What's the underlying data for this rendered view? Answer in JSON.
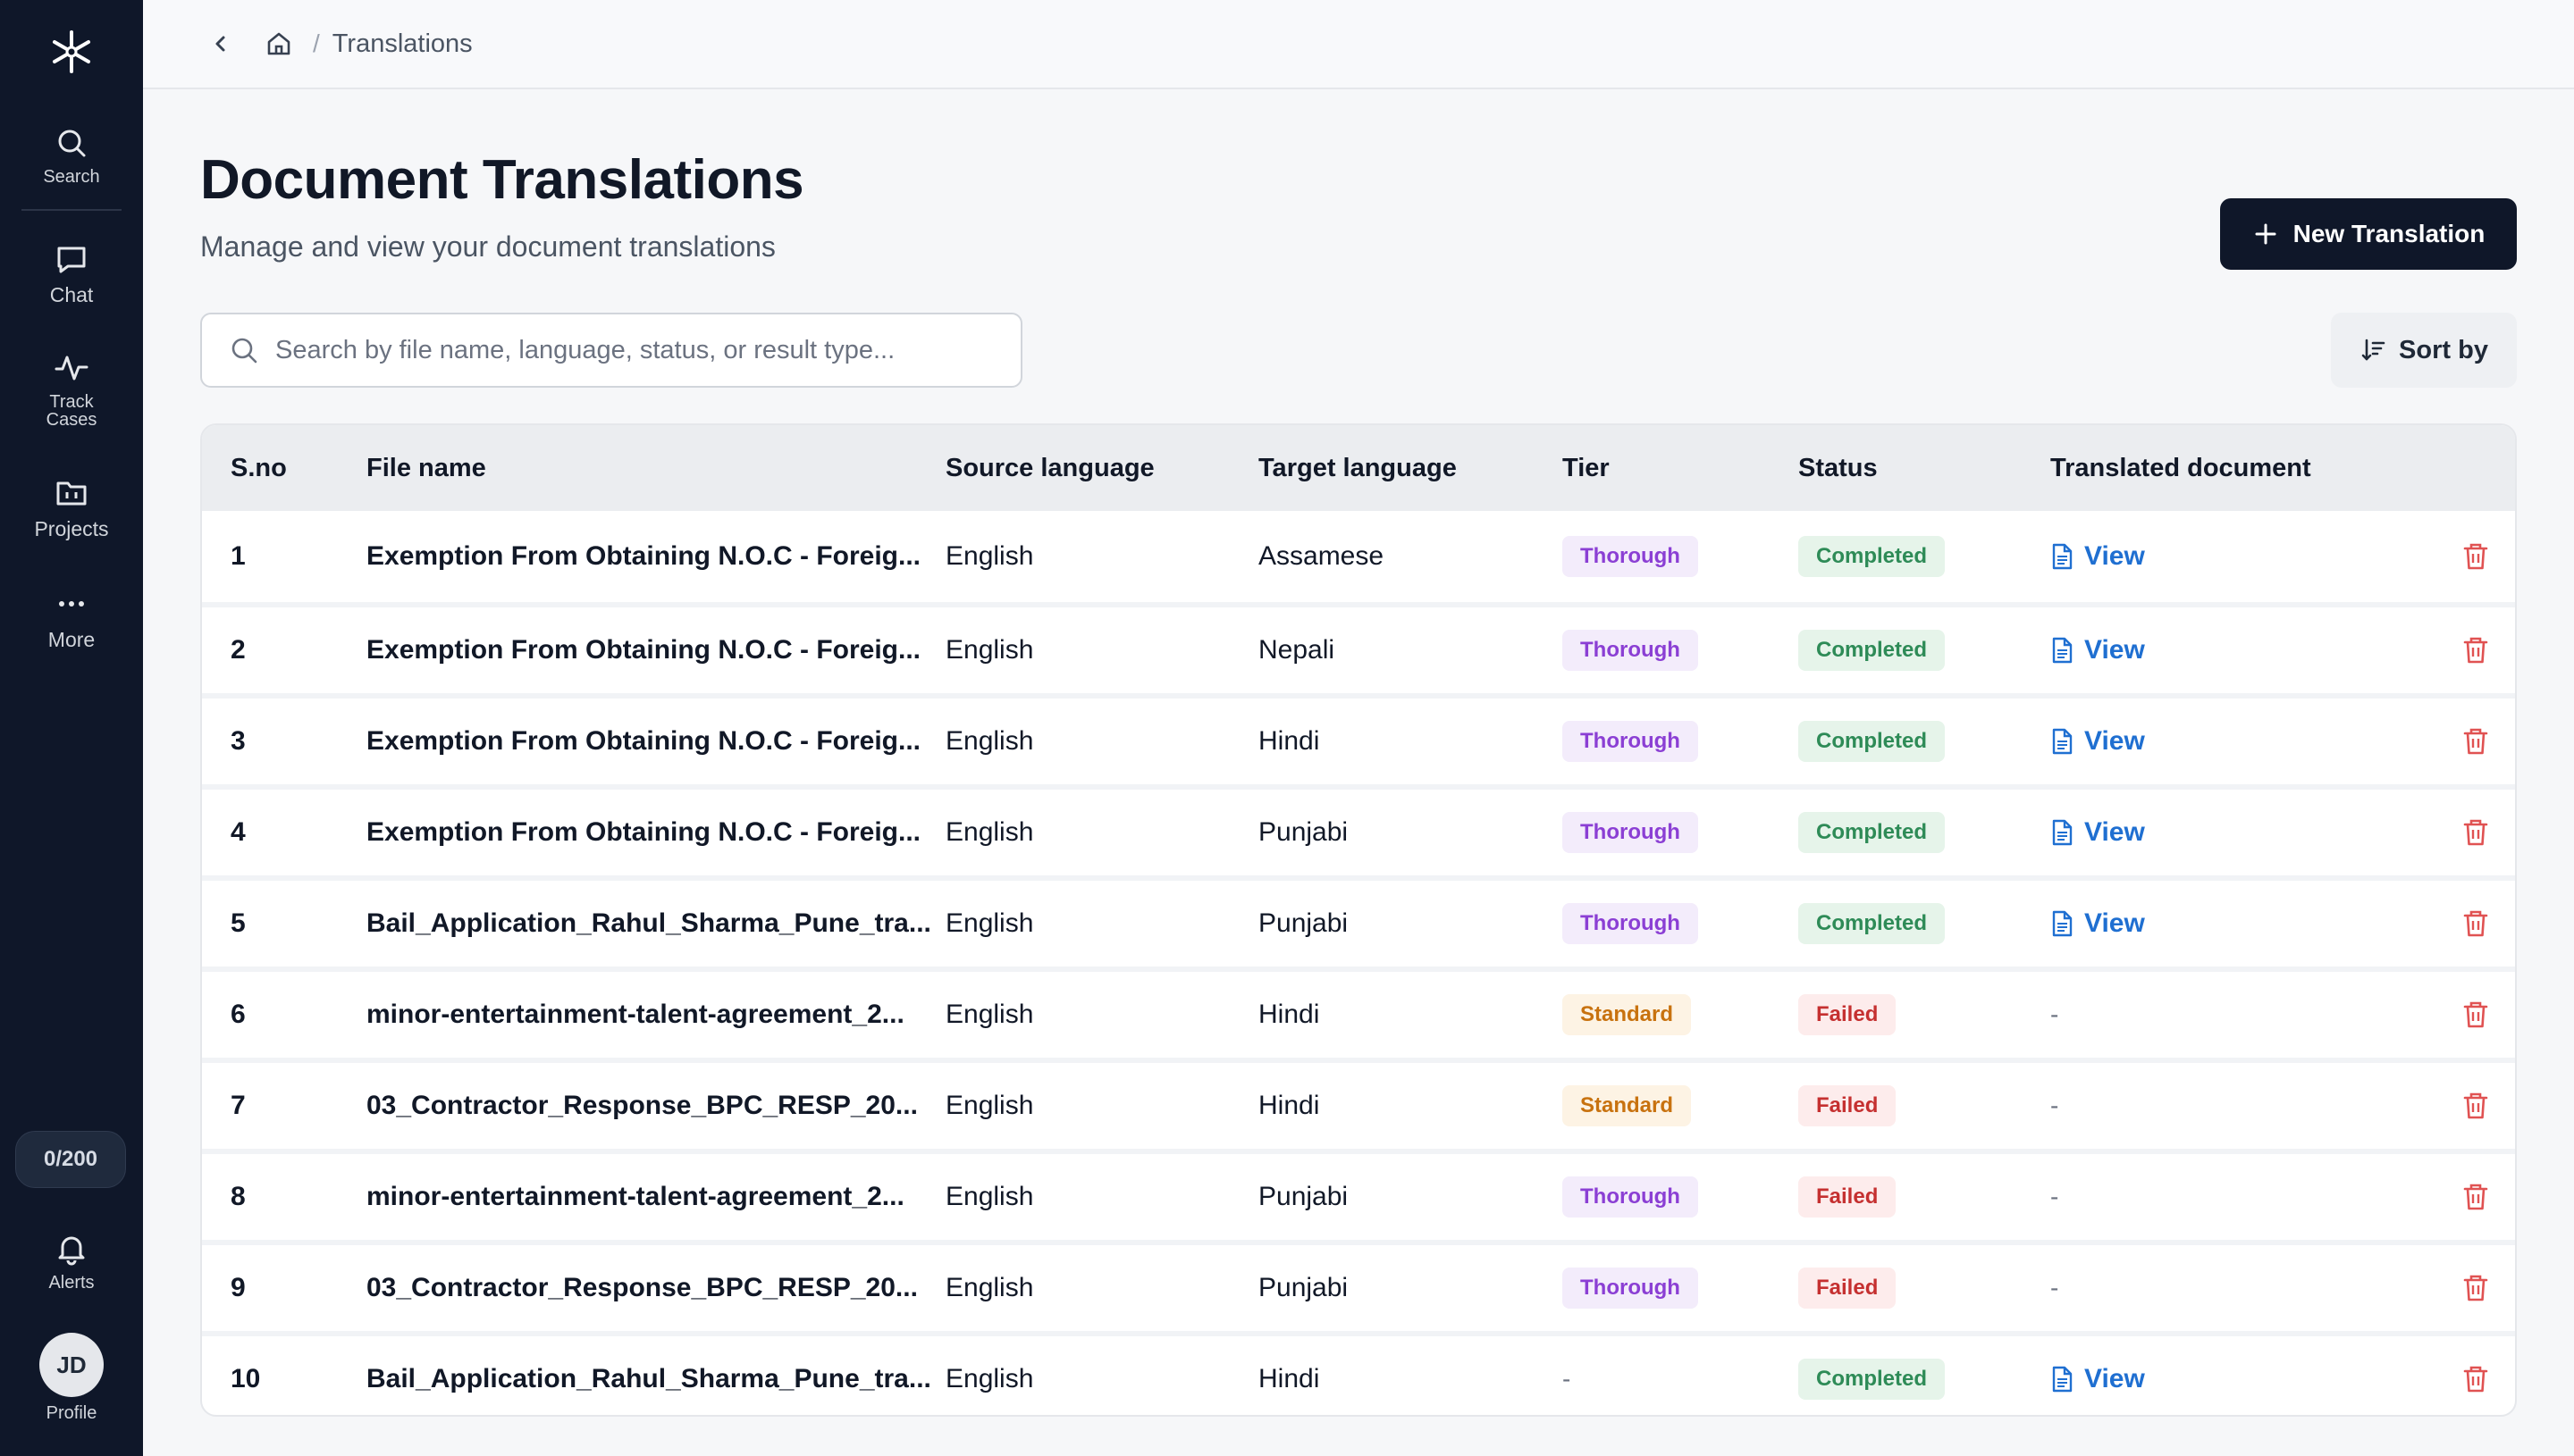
{
  "sidebar": {
    "items": [
      {
        "label": "Search",
        "icon": "search-icon"
      },
      {
        "label": "Chat",
        "icon": "chat-icon"
      },
      {
        "label": "Track\nCases",
        "icon": "activity-icon"
      },
      {
        "label": "Projects",
        "icon": "folder-icon"
      },
      {
        "label": "More",
        "icon": "more-icon"
      }
    ],
    "credits": "0/200",
    "alerts_label": "Alerts",
    "profile_initials": "JD",
    "profile_label": "Profile"
  },
  "breadcrumb": {
    "current": "Translations",
    "separator": "/"
  },
  "header": {
    "title": "Document Translations",
    "subtitle": "Manage and view your document translations",
    "new_button": "New Translation"
  },
  "search": {
    "placeholder": "Search by file name, language, status, or result type..."
  },
  "sort_label": "Sort by",
  "table": {
    "columns": [
      "S.no",
      "File name",
      "Source language",
      "Target language",
      "Tier",
      "Status",
      "Translated document"
    ],
    "rows": [
      {
        "sn": "1",
        "file": "Exemption From Obtaining N.O.C - Foreig...",
        "source": "English",
        "target": "Assamese",
        "tier": "Thorough",
        "status": "Completed",
        "doc": "View"
      },
      {
        "sn": "2",
        "file": "Exemption From Obtaining N.O.C - Foreig...",
        "source": "English",
        "target": "Nepali",
        "tier": "Thorough",
        "status": "Completed",
        "doc": "View"
      },
      {
        "sn": "3",
        "file": "Exemption From Obtaining N.O.C - Foreig...",
        "source": "English",
        "target": "Hindi",
        "tier": "Thorough",
        "status": "Completed",
        "doc": "View"
      },
      {
        "sn": "4",
        "file": "Exemption From Obtaining N.O.C - Foreig...",
        "source": "English",
        "target": "Punjabi",
        "tier": "Thorough",
        "status": "Completed",
        "doc": "View"
      },
      {
        "sn": "5",
        "file": "Bail_Application_Rahul_Sharma_Pune_tra...",
        "source": "English",
        "target": "Punjabi",
        "tier": "Thorough",
        "status": "Completed",
        "doc": "View"
      },
      {
        "sn": "6",
        "file": "minor-entertainment-talent-agreement_2...",
        "source": "English",
        "target": "Hindi",
        "tier": "Standard",
        "status": "Failed",
        "doc": "-"
      },
      {
        "sn": "7",
        "file": "03_Contractor_Response_BPC_RESP_20...",
        "source": "English",
        "target": "Hindi",
        "tier": "Standard",
        "status": "Failed",
        "doc": "-"
      },
      {
        "sn": "8",
        "file": "minor-entertainment-talent-agreement_2...",
        "source": "English",
        "target": "Punjabi",
        "tier": "Thorough",
        "status": "Failed",
        "doc": "-"
      },
      {
        "sn": "9",
        "file": "03_Contractor_Response_BPC_RESP_20...",
        "source": "English",
        "target": "Punjabi",
        "tier": "Thorough",
        "status": "Failed",
        "doc": "-"
      },
      {
        "sn": "10",
        "file": "Bail_Application_Rahul_Sharma_Pune_tra...",
        "source": "English",
        "target": "Hindi",
        "tier": "-",
        "status": "Completed",
        "doc": "View"
      }
    ]
  },
  "colors": {
    "sidebar_bg": "#0f1729",
    "primary_button": "#0f1729",
    "link": "#1f6fd1",
    "thorough": "#8b3fd4",
    "standard": "#c8720f",
    "completed": "#2e8b57",
    "failed": "#c53030",
    "delete": "#e05252"
  }
}
